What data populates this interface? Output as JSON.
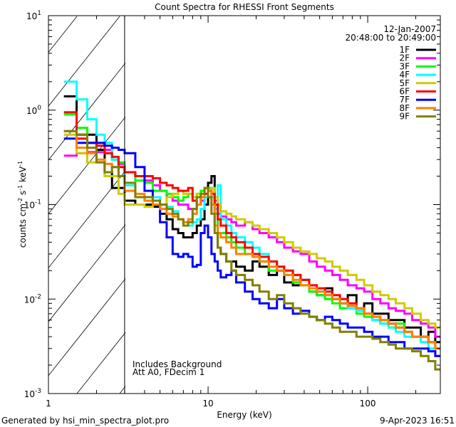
{
  "chart_data": {
    "type": "line",
    "title": "Count Spectra for RHESSI Front Segments",
    "xlabel": "Energy (keV)",
    "ylabel_parts": {
      "base": "counts cm",
      "e1": "-2",
      "mid": " s",
      "e2": "-1",
      "mid2": " keV",
      "e3": "-1"
    },
    "xscale": "log",
    "yscale": "log",
    "xlim": [
      1,
      285
    ],
    "ylim": [
      0.001,
      10
    ],
    "x_tick_labels": [
      "1",
      "10",
      "100"
    ],
    "y_tick_labels": [
      {
        "base": "10",
        "exp": "1"
      },
      {
        "base": "10",
        "exp": "0"
      },
      {
        "base": "10",
        "exp": "-1"
      },
      {
        "base": "10",
        "exp": "-2"
      },
      {
        "base": "10",
        "exp": "-3"
      }
    ],
    "date": "12-Jan-2007",
    "time_range": "20:48:00 to 20:49:00",
    "shaded_region_keV": [
      1,
      3
    ],
    "annotations": [
      "Includes Background",
      "Att A0, FDecim 1"
    ],
    "legend_placement": "top-right",
    "energy_edges": [
      1.25,
      1.5,
      1.75,
      2,
      2.25,
      2.5,
      2.75,
      3,
      3.5,
      4,
      4.5,
      5,
      5.5,
      6,
      6.5,
      7,
      7.5,
      8,
      8.5,
      9,
      9.5,
      10,
      10.5,
      11,
      11.5,
      12,
      13,
      14,
      15,
      17,
      19,
      21,
      24,
      27,
      30,
      34,
      38,
      43,
      48,
      54,
      60,
      67,
      75,
      85,
      95,
      107,
      120,
      135,
      150,
      170,
      190,
      215,
      240,
      265,
      285
    ],
    "series": [
      {
        "name": "1F",
        "color": "#000000",
        "values": [
          1.4,
          0.55,
          0.55,
          0.38,
          0.22,
          0.15,
          0.15,
          0.11,
          0.1,
          0.1,
          0.095,
          0.08,
          0.07,
          0.055,
          0.05,
          0.045,
          0.045,
          0.05,
          0.06,
          0.07,
          0.1,
          0.17,
          0.2,
          0.09,
          0.035,
          0.03,
          0.025,
          0.025,
          0.022,
          0.02,
          0.025,
          0.022,
          0.018,
          0.02,
          0.015,
          0.014,
          0.016,
          0.012,
          0.011,
          0.013,
          0.01,
          0.009,
          0.011,
          0.008,
          0.009,
          0.007,
          0.007,
          0.006,
          0.006,
          0.005,
          0.005,
          0.004,
          0.0045,
          0.0035
        ]
      },
      {
        "name": "2F",
        "color": "#ff00ff",
        "values": [
          0.33,
          0.35,
          0.36,
          0.36,
          0.38,
          0.3,
          0.27,
          0.22,
          0.2,
          0.18,
          0.16,
          0.14,
          0.12,
          0.11,
          0.1,
          0.1,
          0.09,
          0.09,
          0.1,
          0.11,
          0.12,
          0.14,
          0.13,
          0.11,
          0.08,
          0.075,
          0.07,
          0.065,
          0.06,
          0.065,
          0.055,
          0.05,
          0.045,
          0.04,
          0.035,
          0.032,
          0.03,
          0.025,
          0.022,
          0.02,
          0.018,
          0.016,
          0.014,
          0.013,
          0.012,
          0.01,
          0.009,
          0.008,
          0.0075,
          0.007,
          0.006,
          0.0055,
          0.005,
          0.004
        ]
      },
      {
        "name": "3F",
        "color": "#00ff00",
        "values": [
          0.9,
          0.65,
          0.45,
          0.45,
          0.35,
          0.3,
          0.28,
          0.22,
          0.18,
          0.17,
          0.14,
          0.14,
          0.13,
          0.12,
          0.11,
          0.12,
          0.13,
          0.12,
          0.13,
          0.14,
          0.15,
          0.15,
          0.12,
          0.08,
          0.05,
          0.05,
          0.045,
          0.04,
          0.035,
          0.03,
          0.03,
          0.025,
          0.02,
          0.022,
          0.018,
          0.015,
          0.014,
          0.012,
          0.011,
          0.01,
          0.009,
          0.008,
          0.008,
          0.007,
          0.0065,
          0.006,
          0.0055,
          0.005,
          0.0055,
          0.0045,
          0.004,
          0.004,
          0.0035,
          0.003
        ]
      },
      {
        "name": "4F",
        "color": "#00ffff",
        "values": [
          2.0,
          1.3,
          0.8,
          0.55,
          0.45,
          0.3,
          0.25,
          0.16,
          0.12,
          0.11,
          0.12,
          0.1,
          0.095,
          0.085,
          0.07,
          0.065,
          0.06,
          0.065,
          0.07,
          0.09,
          0.12,
          0.14,
          0.12,
          0.09,
          0.16,
          0.07,
          0.06,
          0.05,
          0.045,
          0.04,
          0.035,
          0.03,
          0.025,
          0.022,
          0.02,
          0.018,
          0.016,
          0.014,
          0.012,
          0.011,
          0.01,
          0.009,
          0.008,
          0.0075,
          0.007,
          0.006,
          0.0055,
          0.005,
          0.0045,
          0.004,
          0.004,
          0.0035,
          0.003,
          0.003
        ]
      },
      {
        "name": "5F",
        "color": "#cccc00",
        "values": [
          0.55,
          0.35,
          0.28,
          0.28,
          0.2,
          0.2,
          0.13,
          0.1,
          0.1,
          0.095,
          0.1,
          0.1,
          0.12,
          0.13,
          0.14,
          0.13,
          0.13,
          0.12,
          0.13,
          0.12,
          0.13,
          0.14,
          0.15,
          0.12,
          0.1,
          0.085,
          0.08,
          0.075,
          0.07,
          0.065,
          0.06,
          0.055,
          0.05,
          0.045,
          0.04,
          0.035,
          0.032,
          0.03,
          0.027,
          0.025,
          0.022,
          0.02,
          0.018,
          0.016,
          0.014,
          0.012,
          0.011,
          0.01,
          0.009,
          0.008,
          0.007,
          0.006,
          0.0055,
          0.005
        ]
      },
      {
        "name": "6F",
        "color": "#ff0000",
        "values": [
          0.95,
          0.5,
          0.45,
          0.42,
          0.35,
          0.32,
          0.25,
          0.22,
          0.2,
          0.2,
          0.19,
          0.17,
          0.16,
          0.15,
          0.14,
          0.14,
          0.15,
          0.11,
          0.1,
          0.12,
          0.13,
          0.14,
          0.13,
          0.1,
          0.07,
          0.06,
          0.05,
          0.045,
          0.04,
          0.035,
          0.03,
          0.028,
          0.025,
          0.022,
          0.02,
          0.018,
          0.016,
          0.014,
          0.013,
          0.012,
          0.011,
          0.01,
          0.009,
          0.008,
          0.007,
          0.0065,
          0.006,
          0.0055,
          0.005,
          0.0045,
          0.004,
          0.004,
          0.0035,
          0.003
        ]
      },
      {
        "name": "7F",
        "color": "#0000ff",
        "values": [
          0.5,
          0.45,
          0.45,
          0.45,
          0.42,
          0.4,
          0.38,
          0.35,
          0.25,
          0.14,
          0.1,
          0.065,
          0.045,
          0.03,
          0.028,
          0.03,
          0.028,
          0.022,
          0.023,
          0.05,
          0.06,
          0.045,
          0.03,
          0.025,
          0.02,
          0.017,
          0.018,
          0.02,
          0.015,
          0.012,
          0.01,
          0.009,
          0.008,
          0.01,
          0.008,
          0.007,
          0.0075,
          0.0065,
          0.006,
          0.0065,
          0.006,
          0.0055,
          0.005,
          0.005,
          0.0045,
          0.004,
          0.004,
          0.0035,
          0.0035,
          0.003,
          0.003,
          0.003,
          0.0028,
          0.0025
        ]
      },
      {
        "name": "8F",
        "color": "#ff8000",
        "values": [
          0.6,
          0.4,
          0.35,
          0.3,
          0.27,
          0.25,
          0.2,
          0.14,
          0.13,
          0.11,
          0.1,
          0.09,
          0.08,
          0.075,
          0.07,
          0.065,
          0.07,
          0.08,
          0.1,
          0.12,
          0.15,
          0.14,
          0.1,
          0.06,
          0.05,
          0.045,
          0.04,
          0.035,
          0.03,
          0.03,
          0.028,
          0.025,
          0.022,
          0.02,
          0.018,
          0.016,
          0.014,
          0.013,
          0.012,
          0.011,
          0.01,
          0.009,
          0.0085,
          0.008,
          0.007,
          0.0065,
          0.006,
          0.0055,
          0.005,
          0.0045,
          0.004,
          0.004,
          0.0035,
          0.003
        ]
      },
      {
        "name": "9F",
        "color": "#808000",
        "values": [
          0.6,
          0.55,
          0.4,
          0.28,
          0.22,
          0.25,
          0.2,
          0.17,
          0.12,
          0.12,
          0.11,
          0.1,
          0.09,
          0.08,
          0.07,
          0.06,
          0.065,
          0.09,
          0.12,
          0.13,
          0.15,
          0.12,
          0.08,
          0.05,
          0.035,
          0.03,
          0.025,
          0.02,
          0.018,
          0.016,
          0.014,
          0.012,
          0.01,
          0.011,
          0.009,
          0.008,
          0.007,
          0.0065,
          0.006,
          0.0055,
          0.005,
          0.0045,
          0.0045,
          0.004,
          0.004,
          0.0038,
          0.0035,
          0.0033,
          0.003,
          0.003,
          0.0028,
          0.0025,
          0.0022,
          0.0018
        ]
      }
    ]
  },
  "footer": {
    "generator": "Generated by hsi_min_spectra_plot.pro",
    "timestamp": "9-Apr-2023 16:51"
  }
}
